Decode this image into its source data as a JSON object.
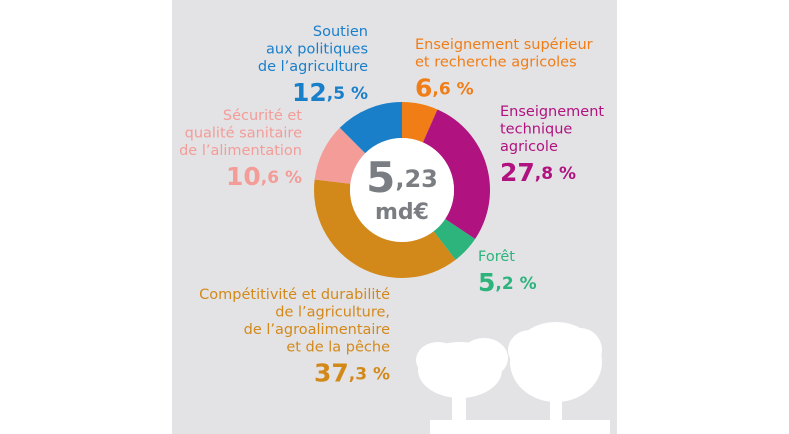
{
  "chart_data": {
    "type": "donut",
    "center_text": "5,23",
    "center_unit": "md€",
    "categories": [
      "Enseignement supérieur\net recherche agricoles",
      "Enseignement\ntechnique\nagricole",
      "Forêt",
      "Compétitivité et durabilité\nde l’agriculture,\nde l’agroalimentaire\net de la pêche",
      "Sécurité et\nqualité sanitaire\nde l’alimentation",
      "Soutien\naux politiques\nde l’agriculture"
    ],
    "values": [
      6.6,
      27.8,
      5.2,
      37.3,
      10.6,
      12.5
    ],
    "value_labels": [
      "6,6 %",
      "27,8 %",
      "5,2 %",
      "37,3 %",
      "10,6 %",
      "12,5 %"
    ],
    "colors": [
      "#f07d16",
      "#b0127f",
      "#2db37c",
      "#d3891a",
      "#f39c98",
      "#1a7fc9"
    ]
  }
}
